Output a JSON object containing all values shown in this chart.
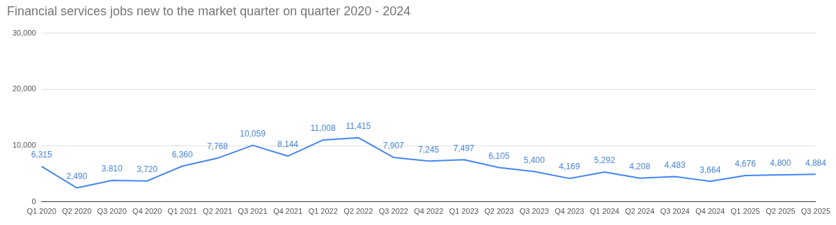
{
  "chart_data": {
    "type": "line",
    "title": "Financial services jobs new to the market quarter on quarter 2020 - 2024",
    "categories": [
      "Q1 2020",
      "Q2 2020",
      "Q3 2020",
      "Q4 2020",
      "Q1 2021",
      "Q2 2021",
      "Q3 2021",
      "Q4 2021",
      "Q1 2022",
      "Q2 2022",
      "Q3 2022",
      "Q4 2022",
      "Q1 2023",
      "Q2 2023",
      "Q3 2023",
      "Q4 2023",
      "Q1 2024",
      "Q2 2024",
      "Q3 2024",
      "Q4 2024",
      "Q1 2025",
      "Q2 2025",
      "Q3 2025"
    ],
    "series": [
      {
        "color": "#4285f4",
        "values": [
          6315,
          2490,
          3810,
          3720,
          6360,
          7768,
          10059,
          8144,
          11008,
          11415,
          7907,
          7245,
          7497,
          6105,
          5400,
          4169,
          5292,
          4208,
          4483,
          3664,
          4676,
          4800,
          4884
        ],
        "value_labels": [
          "6,315",
          "2,490",
          "3,810",
          "3,720",
          "6,360",
          "7,768",
          "10,059",
          "8,144",
          "11,008",
          "11,415",
          "7,907",
          "7,245",
          "7,497",
          "6,105",
          "5,400",
          "4,169",
          "5,292",
          "4,208",
          "4,483",
          "3,664",
          "4,676",
          "4,800",
          "4,884"
        ]
      }
    ],
    "ylim": [
      0,
      30000
    ],
    "yticks": [
      {
        "value": 0,
        "label": "0"
      },
      {
        "value": 10000,
        "label": "10,000"
      },
      {
        "value": 20000,
        "label": "20,000"
      },
      {
        "value": 30000,
        "label": "30,000"
      }
    ],
    "grid": "y",
    "legend": false,
    "marker": "none",
    "line_style": "solid"
  }
}
